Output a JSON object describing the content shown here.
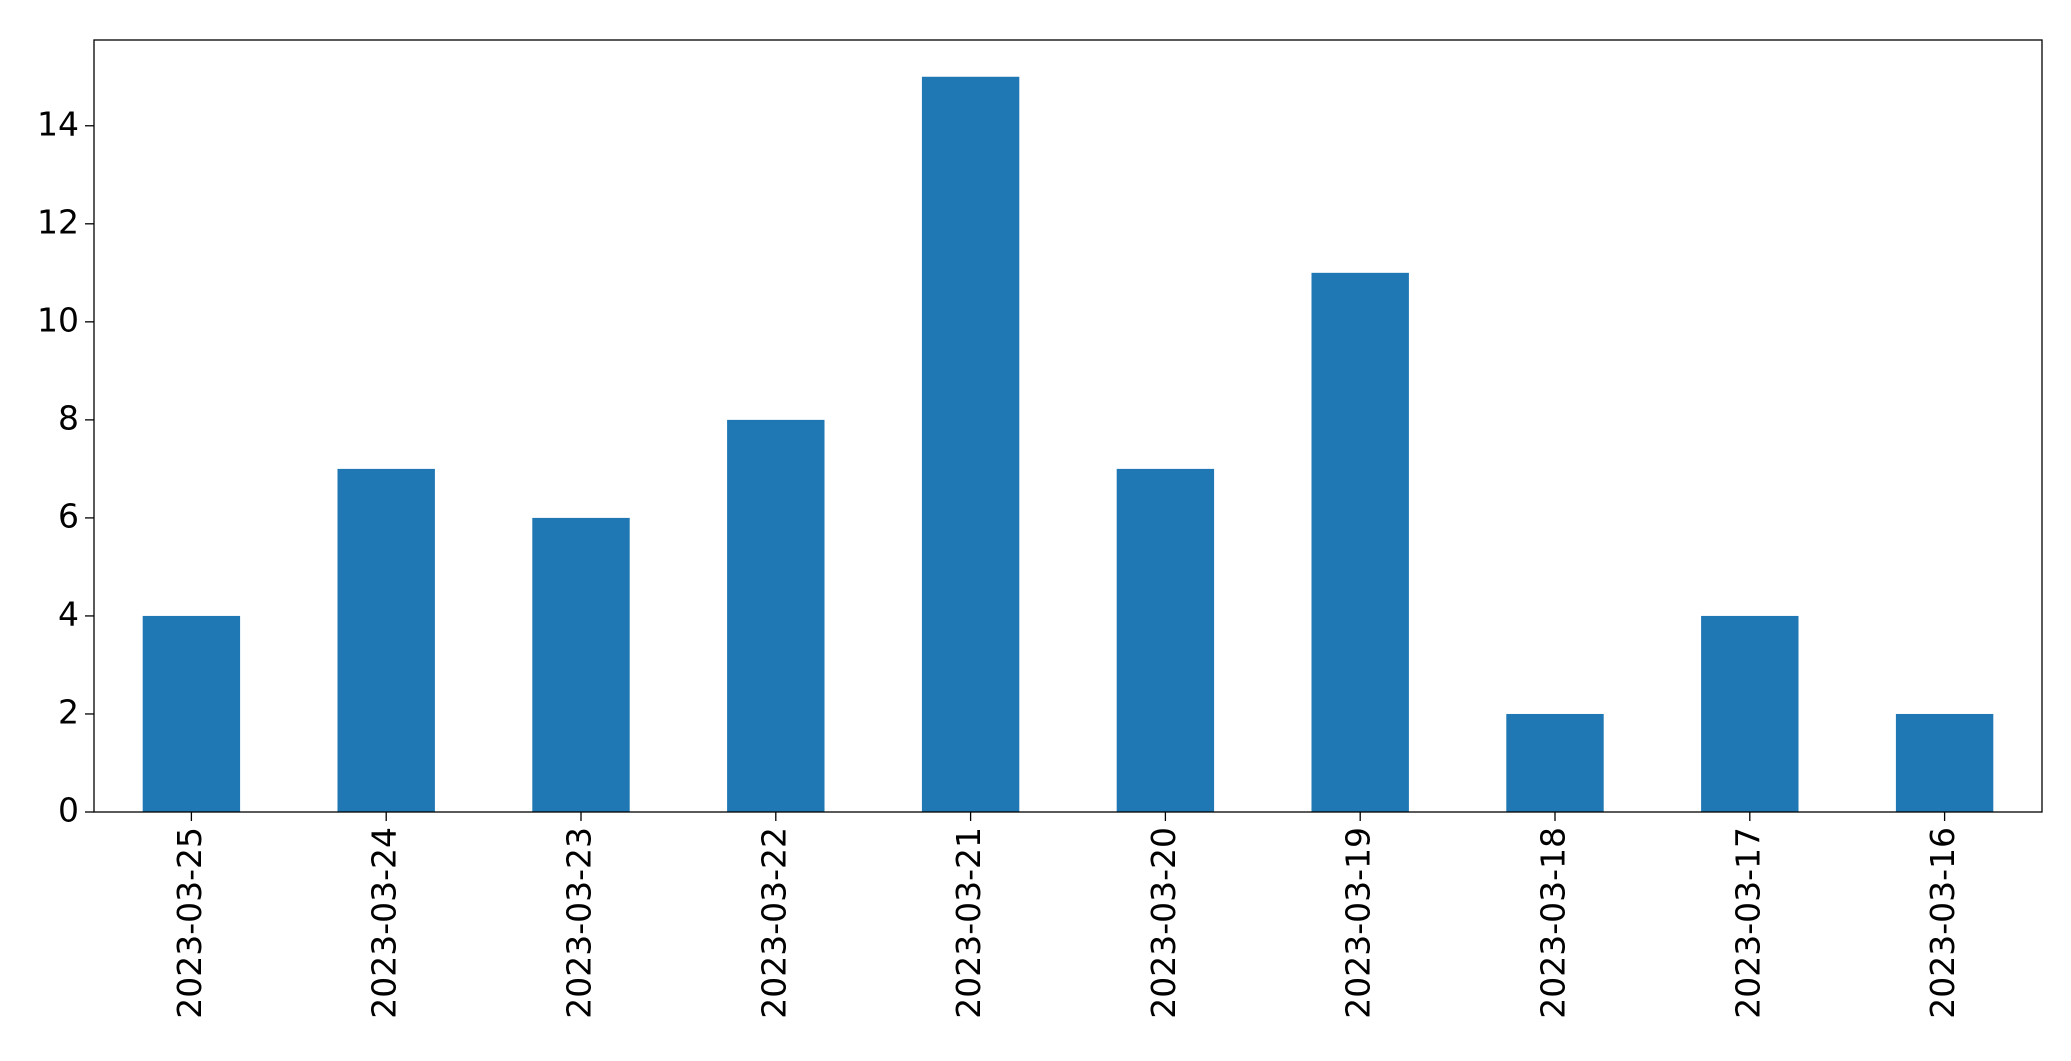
{
  "chart_data": {
    "type": "bar",
    "categories": [
      "2023-03-25",
      "2023-03-24",
      "2023-03-23",
      "2023-03-22",
      "2023-03-21",
      "2023-03-20",
      "2023-03-19",
      "2023-03-18",
      "2023-03-17",
      "2023-03-16"
    ],
    "values": [
      4,
      7,
      6,
      8,
      15,
      7,
      11,
      2,
      4,
      2
    ],
    "color": "#1f77b4",
    "ylim": [
      0,
      15.75
    ],
    "yticks": [
      0,
      2,
      4,
      6,
      8,
      10,
      12,
      14
    ],
    "grid": false
  }
}
